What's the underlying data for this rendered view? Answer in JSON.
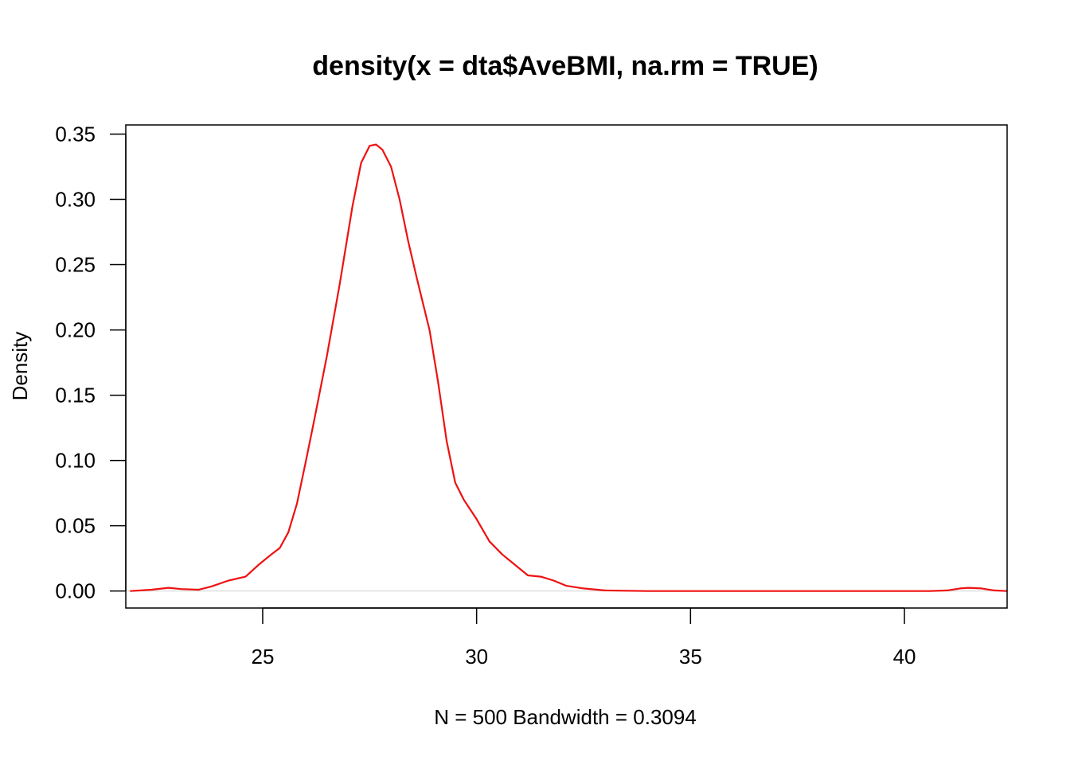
{
  "chart_data": {
    "type": "line",
    "title": "density(x = dta$AveBMI, na.rm = TRUE)",
    "xlabel": "N = 500   Bandwidth = 0.3094",
    "ylabel": "Density",
    "xlim": [
      21.8,
      42.4
    ],
    "ylim": [
      -0.013,
      0.357
    ],
    "xticks": [
      25,
      30,
      35,
      40
    ],
    "yticks": [
      "0.00",
      "0.05",
      "0.10",
      "0.15",
      "0.20",
      "0.25",
      "0.30",
      "0.35"
    ],
    "grid": false,
    "legend": "none",
    "baseline": 0,
    "baseline_color": "#d0d0d0",
    "series": [
      {
        "color": "#ee1111",
        "x": [
          21.9,
          22.4,
          22.8,
          23.1,
          23.5,
          23.8,
          24.2,
          24.6,
          24.9,
          25.2,
          25.4,
          25.6,
          25.8,
          26.0,
          26.2,
          26.5,
          26.8,
          27.1,
          27.3,
          27.5,
          27.65,
          27.8,
          28.0,
          28.2,
          28.4,
          28.6,
          28.9,
          29.1,
          29.3,
          29.5,
          29.7,
          30.0,
          30.3,
          30.6,
          30.9,
          31.2,
          31.5,
          31.8,
          32.1,
          32.5,
          33.0,
          33.5,
          34.0,
          35.0,
          36.0,
          37.0,
          38.0,
          39.0,
          40.0,
          40.6,
          41.0,
          41.3,
          41.5,
          41.8,
          42.1,
          42.4
        ],
        "values": [
          0.0,
          0.001,
          0.0025,
          0.0015,
          0.001,
          0.0035,
          0.008,
          0.011,
          0.02,
          0.028,
          0.033,
          0.045,
          0.067,
          0.098,
          0.13,
          0.18,
          0.235,
          0.295,
          0.328,
          0.341,
          0.342,
          0.338,
          0.325,
          0.3,
          0.268,
          0.24,
          0.2,
          0.16,
          0.115,
          0.083,
          0.07,
          0.055,
          0.038,
          0.028,
          0.02,
          0.012,
          0.011,
          0.008,
          0.004,
          0.002,
          0.0005,
          0.0002,
          0.0,
          0.0,
          0.0,
          0.0,
          0.0,
          0.0,
          0.0,
          0.0,
          0.0005,
          0.002,
          0.0025,
          0.002,
          0.0005,
          0.0
        ]
      }
    ]
  }
}
